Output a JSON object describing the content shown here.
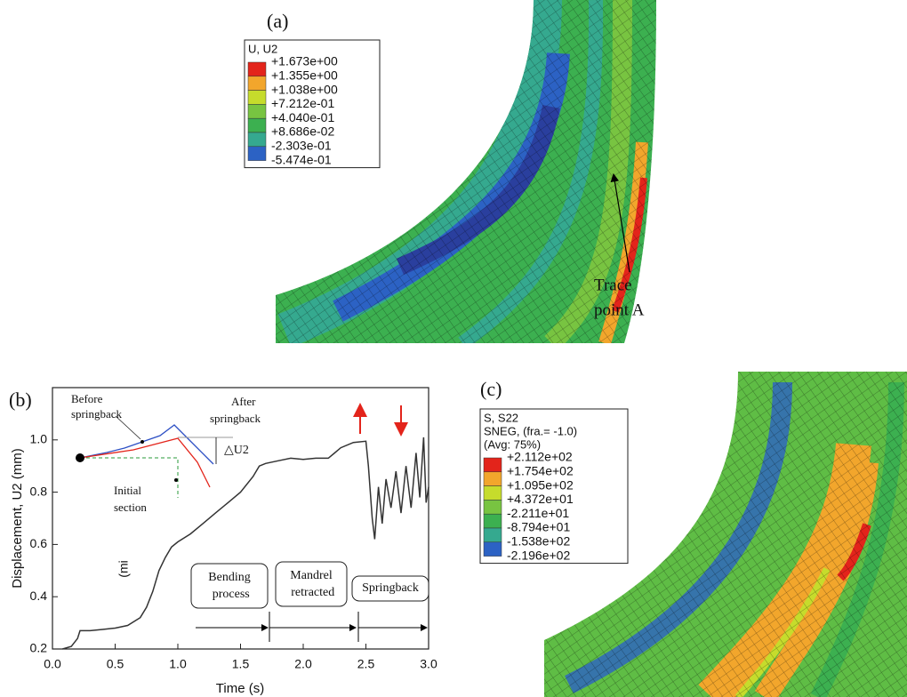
{
  "panel_a": {
    "label": "(a)",
    "legend_title": "U, U2",
    "legend_values": [
      "+1.673e+00",
      "+1.355e+00",
      "+1.038e+00",
      "+7.212e-01",
      "+4.040e-01",
      "+8.686e-02",
      "-2.303e-01",
      "-5.474e-01"
    ],
    "legend_colors": [
      "#e3241b",
      "#f2a62c",
      "#c6dc2c",
      "#78c441",
      "#3cb050",
      "#35a98f",
      "#2c62c4"
    ],
    "annotation": [
      "Trace",
      "point A"
    ]
  },
  "chart_data": {
    "type": "line",
    "label": "(b)",
    "x_label": "Time (s)",
    "y_label": "Displacement, U2 (mm)",
    "x": [
      0.08,
      0.15,
      0.2,
      0.22,
      0.3,
      0.4,
      0.5,
      0.6,
      0.7,
      0.75,
      0.8,
      0.85,
      0.9,
      0.95,
      1.0,
      1.1,
      1.2,
      1.3,
      1.4,
      1.5,
      1.6,
      1.65,
      1.7,
      1.8,
      1.9,
      2.0,
      2.1,
      2.2,
      2.25,
      2.3,
      2.4,
      2.5,
      2.52,
      2.55,
      2.57,
      2.6,
      2.63,
      2.66,
      2.7,
      2.74,
      2.78,
      2.82,
      2.86,
      2.9,
      2.93,
      2.96,
      2.98,
      3.0
    ],
    "values": [
      0.2,
      0.21,
      0.24,
      0.27,
      0.27,
      0.275,
      0.28,
      0.29,
      0.32,
      0.36,
      0.42,
      0.5,
      0.55,
      0.59,
      0.61,
      0.64,
      0.68,
      0.72,
      0.76,
      0.8,
      0.86,
      0.9,
      0.91,
      0.92,
      0.93,
      0.925,
      0.93,
      0.93,
      0.95,
      0.97,
      0.99,
      0.995,
      0.9,
      0.7,
      0.62,
      0.82,
      0.68,
      0.85,
      0.74,
      0.88,
      0.72,
      0.9,
      0.74,
      0.95,
      0.78,
      1.01,
      0.76,
      0.82
    ],
    "color": "#333333",
    "xlim": [
      0,
      3
    ],
    "ylim": [
      0.2,
      1.2
    ],
    "xticks": [
      {
        "value": 0,
        "label": "0.0"
      },
      0.5,
      {
        "value": 1,
        "label": "1.0"
      },
      1.5,
      {
        "value": 2,
        "label": "2.0"
      },
      2.5,
      {
        "value": 3,
        "label": "3.0"
      }
    ],
    "yticks": [
      0.2,
      0.4,
      0.6,
      0.8,
      {
        "value": 1,
        "label": "1.0"
      }
    ],
    "phases": [
      "Bending process",
      "Mandrel retracted",
      "Springback"
    ],
    "inset": {
      "before": [
        "Before",
        "springback"
      ],
      "after": [
        "After",
        "springback"
      ],
      "delta": "△U2",
      "initial": [
        "Initial",
        "section"
      ]
    },
    "stray_text": "(mi"
  },
  "panel_c": {
    "label": "(c)",
    "legend_title": [
      "S, S22",
      "SNEG, (fra.= -1.0)",
      "(Avg: 75%)"
    ],
    "legend_values": [
      "+2.112e+02",
      "+1.754e+02",
      "+1.095e+02",
      "+4.372e+01",
      "-2.211e+01",
      "-8.794e+01",
      "-1.538e+02",
      "-2.196e+02"
    ],
    "legend_colors": [
      "#e3241b",
      "#f2a62c",
      "#c6dc2c",
      "#78c441",
      "#3cb050",
      "#35a98f",
      "#2c62c4"
    ]
  }
}
